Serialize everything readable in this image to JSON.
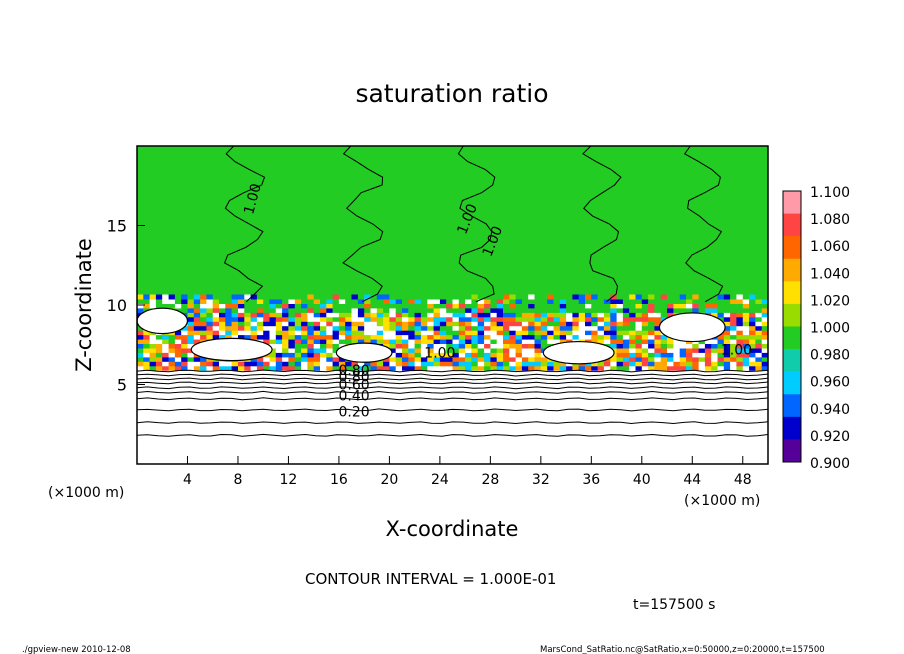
{
  "chart_data": {
    "type": "heatmap",
    "title": "saturation ratio",
    "xlabel": "X-coordinate",
    "ylabel": "Z-coordinate",
    "x_unit_left": "(×1000 m)",
    "x_unit_right": "(×1000 m)",
    "xlim": [
      0,
      50
    ],
    "ylim": [
      0,
      20
    ],
    "x_ticks": [
      4,
      8,
      12,
      16,
      20,
      24,
      28,
      32,
      36,
      40,
      44,
      48
    ],
    "y_ticks": [
      5,
      10,
      15
    ],
    "colorbar": {
      "levels": [
        "1.100",
        "1.080",
        "1.060",
        "1.040",
        "1.020",
        "1.000",
        "0.980",
        "0.960",
        "0.940",
        "0.920",
        "0.900"
      ],
      "colors": [
        "#ff9aa8",
        "#ff4444",
        "#ff6600",
        "#ffaa00",
        "#ffe000",
        "#99dd00",
        "#22cc22",
        "#11ccaa",
        "#00ccff",
        "#0066ff",
        "#0000cc",
        "#550099"
      ]
    },
    "contour_labels": [
      "1.00",
      "1.00",
      "1.00",
      "1.00",
      "0.80",
      "0.60",
      "0.40",
      "0.20",
      "1.00",
      "0.80"
    ],
    "regions": {
      "upper_background_color": "#22cc22",
      "lower_background_color": "#ffffff"
    }
  },
  "footer": {
    "contour_interval": "CONTOUR INTERVAL = 1.000E-01",
    "time": "t=157500 s",
    "tool": "./gpview-new   2010-12-08",
    "source": "MarsCond_SatRatio.nc@SatRatio,x=0:50000,z=0:20000,t=157500"
  }
}
